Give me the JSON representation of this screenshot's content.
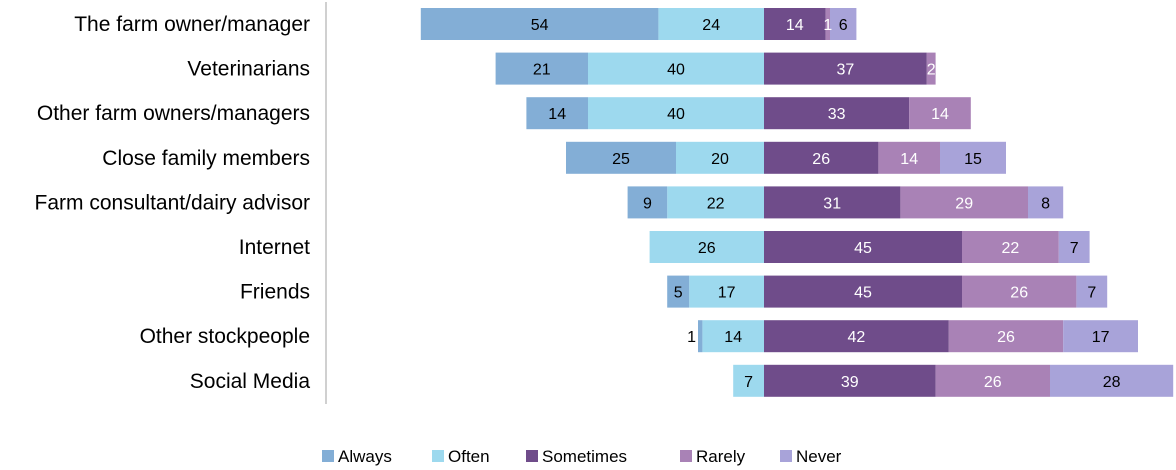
{
  "chart_data": {
    "type": "bar",
    "orientation": "horizontal-diverging",
    "categories": [
      "The farm owner/manager",
      "Veterinarians",
      "Other farm owners/managers",
      "Close family members",
      "Farm consultant/dairy advisor",
      "Internet",
      "Friends",
      "Other stockpeople",
      "Social Media"
    ],
    "series": [
      {
        "name": "Always",
        "color": "#83aed6",
        "side": "left",
        "values": [
          54,
          21,
          14,
          25,
          9,
          0,
          5,
          1,
          0
        ]
      },
      {
        "name": "Often",
        "color": "#9dd9ee",
        "side": "left",
        "values": [
          24,
          40,
          40,
          20,
          22,
          26,
          17,
          14,
          7
        ]
      },
      {
        "name": "Sometimes",
        "color": "#6f4c8a",
        "side": "right",
        "values": [
          14,
          37,
          33,
          26,
          31,
          45,
          45,
          42,
          39
        ]
      },
      {
        "name": "Rarely",
        "color": "#a982b6",
        "side": "right",
        "values": [
          1,
          2,
          14,
          14,
          29,
          22,
          26,
          26,
          26
        ]
      },
      {
        "name": "Never",
        "color": "#a8a3d9",
        "side": "right",
        "values": [
          6,
          0,
          0,
          15,
          8,
          7,
          7,
          17,
          28
        ]
      }
    ],
    "data_labels": [
      [
        "54",
        "24",
        "14",
        "1",
        "6"
      ],
      [
        "21",
        "40",
        "37",
        "2",
        ""
      ],
      [
        "14",
        "40",
        "33",
        "14",
        ""
      ],
      [
        "25",
        "20",
        "26",
        "14",
        "15"
      ],
      [
        "9",
        "22",
        "31",
        "29",
        "8"
      ],
      [
        "",
        "26",
        "45",
        "22",
        "7"
      ],
      [
        "5",
        "17",
        "45",
        "26",
        "7"
      ],
      [
        "1",
        "14",
        "42",
        "26",
        "17"
      ],
      [
        "",
        "7",
        "39",
        "26",
        "28"
      ]
    ],
    "label_colors": [
      [
        "#000000",
        "#000000",
        "#ffffff",
        "#ffffff",
        "#000000"
      ],
      [
        "#000000",
        "#000000",
        "#ffffff",
        "#ffffff",
        "#000000"
      ],
      [
        "#000000",
        "#000000",
        "#ffffff",
        "#ffffff",
        "#000000"
      ],
      [
        "#000000",
        "#000000",
        "#ffffff",
        "#ffffff",
        "#000000"
      ],
      [
        "#000000",
        "#000000",
        "#ffffff",
        "#ffffff",
        "#000000"
      ],
      [
        "#000000",
        "#000000",
        "#ffffff",
        "#ffffff",
        "#000000"
      ],
      [
        "#000000",
        "#000000",
        "#ffffff",
        "#ffffff",
        "#000000"
      ],
      [
        "#000000",
        "#000000",
        "#ffffff",
        "#ffffff",
        "#000000"
      ],
      [
        "#000000",
        "#000000",
        "#ffffff",
        "#ffffff",
        "#000000"
      ]
    ],
    "legend_position": "bottom",
    "grid": false
  }
}
